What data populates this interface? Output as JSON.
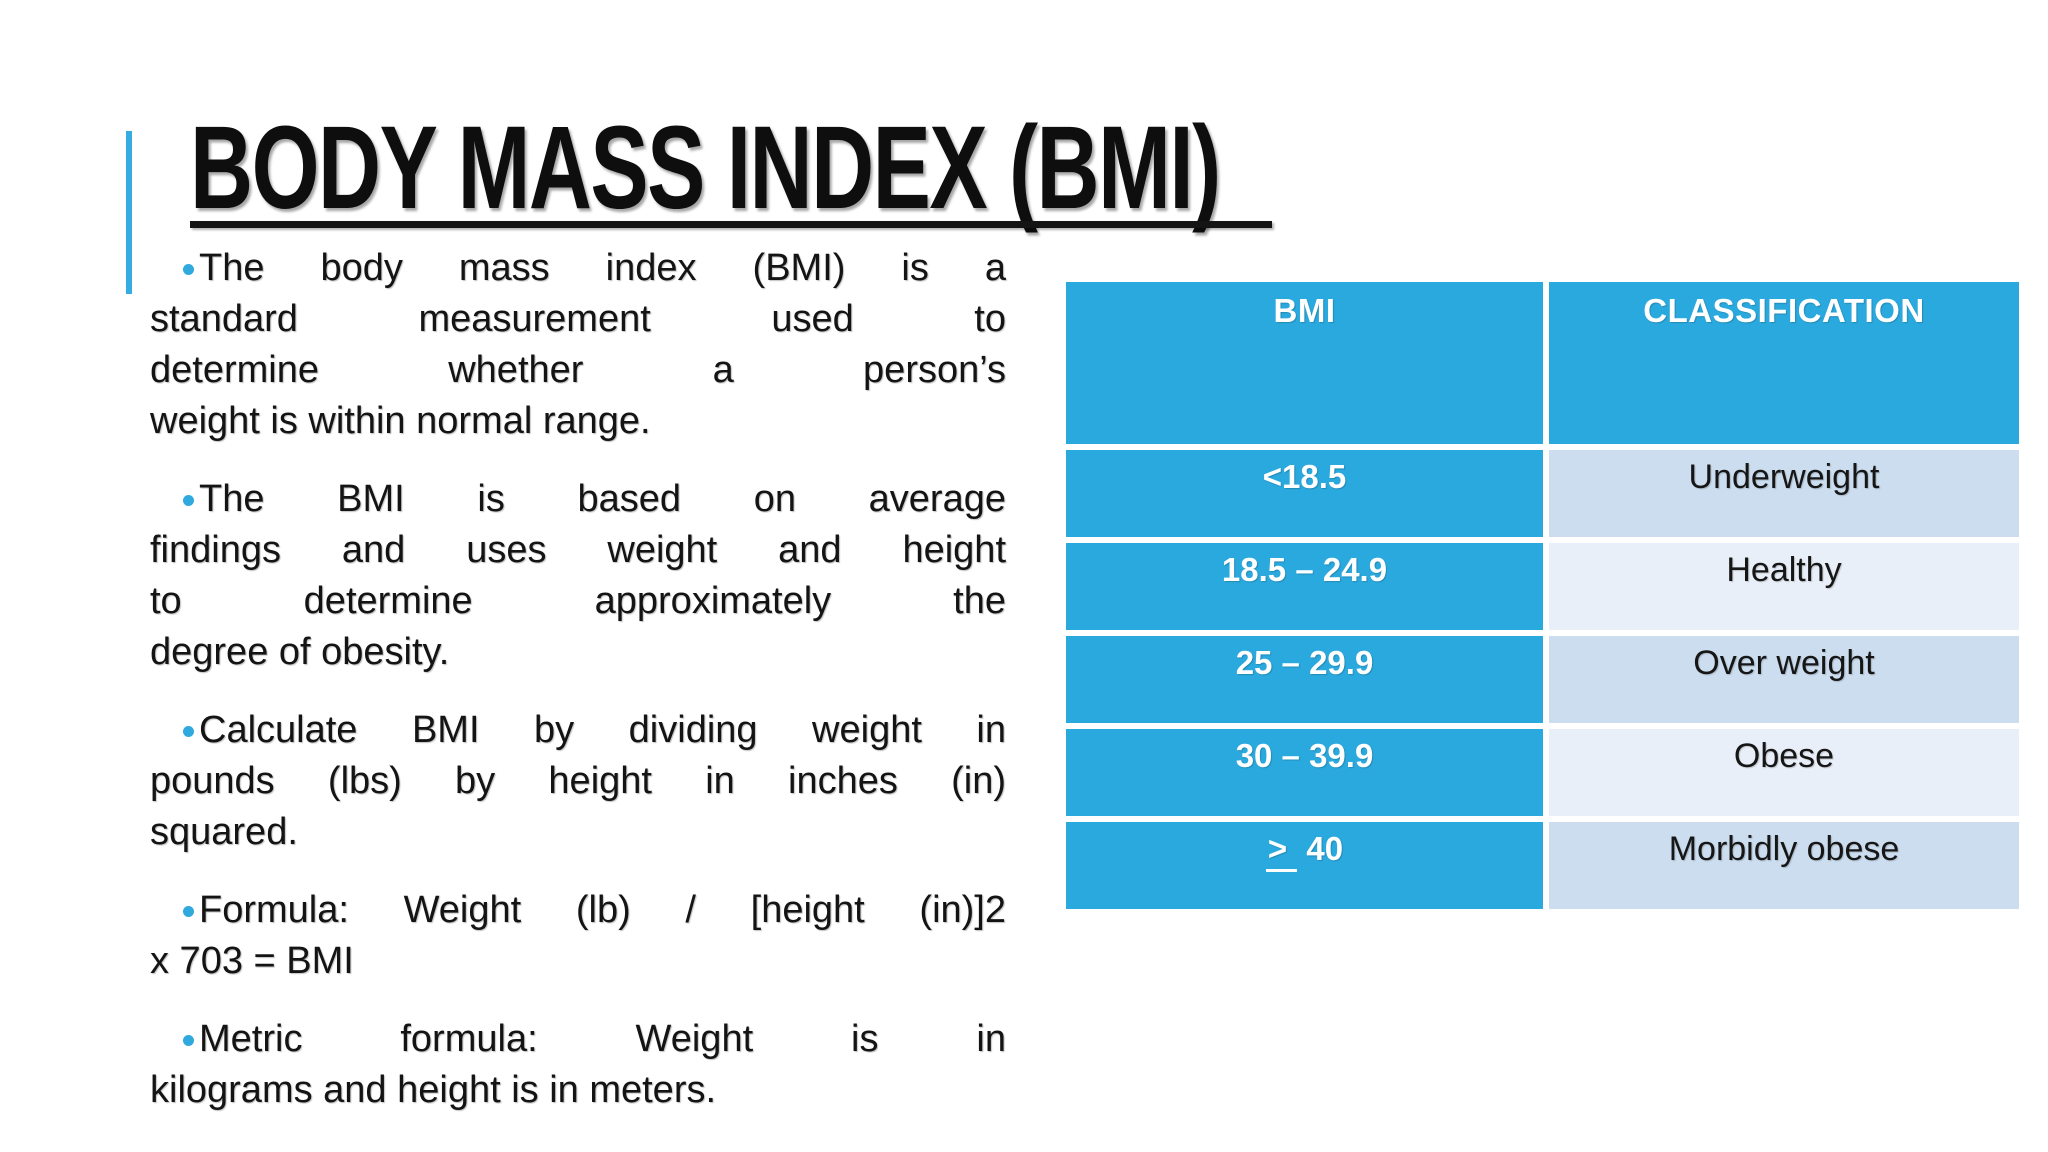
{
  "slide": {
    "title": "BODY MASS INDEX (BMI)",
    "accent_color": "#35ade0",
    "background_color": "#ffffff"
  },
  "bullets": [
    {
      "lines": [
        "The body mass index (BMI) is a",
        "standard measurement used to",
        "determine whether a person’s",
        "weight is within normal range."
      ]
    },
    {
      "lines": [
        "The BMI is based on average",
        "findings and uses weight and height",
        "to determine approximately the",
        "degree of obesity."
      ]
    },
    {
      "lines": [
        "Calculate BMI by dividing weight in",
        "pounds (lbs) by height in inches (in)",
        "squared."
      ]
    },
    {
      "lines": [
        "Formula: Weight (lb) / [height (in)]2",
        "x 703 = BMI"
      ]
    },
    {
      "lines": [
        "Metric formula: Weight is in",
        "kilograms and height is in meters."
      ]
    }
  ],
  "table": {
    "headers": [
      "BMI",
      "CLASSIFICATION"
    ],
    "rows": [
      {
        "bmi_u": "",
        "bmi": "<18.5",
        "classification": "Underweight"
      },
      {
        "bmi_u": "",
        "bmi": "18.5 – 24.9",
        "classification": "Healthy"
      },
      {
        "bmi_u": "",
        "bmi": "25 – 29.9",
        "classification": "Over weight"
      },
      {
        "bmi_u": "",
        "bmi": "30 – 39.9",
        "classification": "Obese"
      },
      {
        "bmi_u": ">",
        "bmi": " 40",
        "classification": "Morbidly obese"
      }
    ],
    "colors": {
      "header_bg": "#2aa9de",
      "bmi_column_bg": "#2aa9de",
      "row_band_dark": "#cbddee",
      "row_band_light": "#e9eff8",
      "header_text": "#ffffff"
    }
  }
}
